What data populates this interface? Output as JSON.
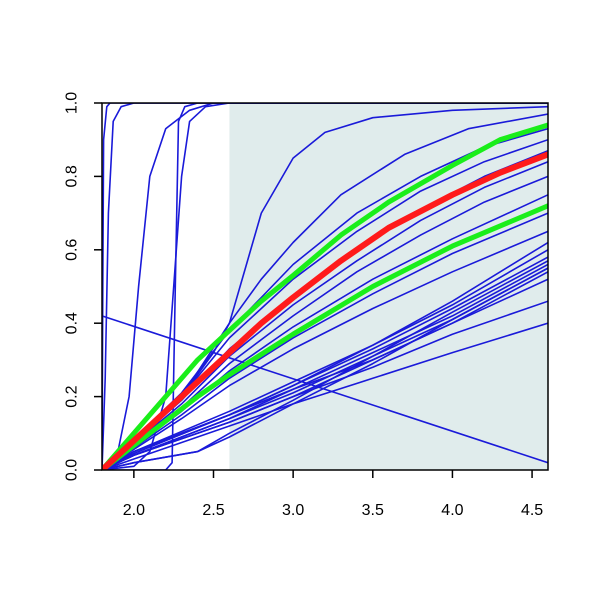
{
  "chart_data": {
    "type": "line",
    "title": "",
    "xlabel": "",
    "ylabel": "",
    "xlim": [
      1.8,
      4.6
    ],
    "ylim": [
      0.0,
      1.0
    ],
    "x_ticks": [
      "2.0",
      "2.5",
      "3.0",
      "3.5",
      "4.0",
      "4.5"
    ],
    "y_ticks": [
      "0.0",
      "0.2",
      "0.4",
      "0.6",
      "0.8",
      "1.0"
    ],
    "grid": false,
    "legend": "none",
    "shaded_region": {
      "x": [
        2.6,
        4.6
      ],
      "color": "#e0ecec"
    },
    "colors": {
      "ensemble": "#1a1ad9",
      "median": "#ff1a1a",
      "bounds": "#1aee1a"
    },
    "series": [
      {
        "role": "ensemble",
        "points": [
          [
            1.8,
            0
          ],
          [
            1.805,
            0.5
          ],
          [
            1.81,
            0.9
          ],
          [
            1.83,
            0.99
          ],
          [
            1.85,
            1.0
          ],
          [
            4.6,
            1.0
          ]
        ]
      },
      {
        "role": "ensemble",
        "points": [
          [
            1.8,
            0
          ],
          [
            1.82,
            0.25
          ],
          [
            1.84,
            0.7
          ],
          [
            1.87,
            0.95
          ],
          [
            1.92,
            0.99
          ],
          [
            2.0,
            1.0
          ],
          [
            4.6,
            1.0
          ]
        ]
      },
      {
        "role": "ensemble",
        "points": [
          [
            1.8,
            0
          ],
          [
            1.9,
            0.05
          ],
          [
            1.97,
            0.2
          ],
          [
            2.03,
            0.5
          ],
          [
            2.1,
            0.8
          ],
          [
            2.2,
            0.93
          ],
          [
            2.35,
            0.98
          ],
          [
            2.5,
            1.0
          ],
          [
            4.6,
            1.0
          ]
        ]
      },
      {
        "role": "ensemble",
        "points": [
          [
            1.8,
            0
          ],
          [
            2.0,
            0.01
          ],
          [
            2.1,
            0.05
          ],
          [
            2.2,
            0.2
          ],
          [
            2.25,
            0.5
          ],
          [
            2.3,
            0.8
          ],
          [
            2.35,
            0.95
          ],
          [
            2.45,
            0.99
          ],
          [
            2.6,
            1.0
          ],
          [
            4.6,
            1.0
          ]
        ]
      },
      {
        "role": "ensemble",
        "points": [
          [
            1.8,
            0
          ],
          [
            2.2,
            0.0
          ],
          [
            2.24,
            0.02
          ],
          [
            2.26,
            0.5
          ],
          [
            2.28,
            0.95
          ],
          [
            2.32,
            0.99
          ],
          [
            2.4,
            1.0
          ],
          [
            4.6,
            1.0
          ]
        ]
      },
      {
        "role": "ensemble",
        "points": [
          [
            1.8,
            0
          ],
          [
            2.3,
            0.2
          ],
          [
            2.5,
            0.32
          ],
          [
            2.6,
            0.4
          ],
          [
            2.7,
            0.55
          ],
          [
            2.8,
            0.7
          ],
          [
            3.0,
            0.85
          ],
          [
            3.2,
            0.92
          ],
          [
            3.5,
            0.96
          ],
          [
            4.0,
            0.98
          ],
          [
            4.6,
            0.99
          ]
        ]
      },
      {
        "role": "ensemble",
        "points": [
          [
            1.8,
            0
          ],
          [
            2.3,
            0.2
          ],
          [
            2.6,
            0.4
          ],
          [
            2.8,
            0.52
          ],
          [
            3.0,
            0.62
          ],
          [
            3.3,
            0.75
          ],
          [
            3.7,
            0.86
          ],
          [
            4.1,
            0.93
          ],
          [
            4.6,
            0.97
          ]
        ]
      },
      {
        "role": "ensemble",
        "points": [
          [
            1.8,
            0
          ],
          [
            2.3,
            0.21
          ],
          [
            2.6,
            0.38
          ],
          [
            2.8,
            0.47
          ],
          [
            3.0,
            0.56
          ],
          [
            3.4,
            0.7
          ],
          [
            3.8,
            0.8
          ],
          [
            4.2,
            0.88
          ],
          [
            4.6,
            0.93
          ]
        ]
      },
      {
        "role": "ensemble",
        "points": [
          [
            1.8,
            0
          ],
          [
            2.3,
            0.2
          ],
          [
            2.6,
            0.36
          ],
          [
            3.0,
            0.52
          ],
          [
            3.4,
            0.65
          ],
          [
            3.8,
            0.76
          ],
          [
            4.2,
            0.84
          ],
          [
            4.6,
            0.9
          ]
        ]
      },
      {
        "role": "ensemble",
        "points": [
          [
            1.8,
            0
          ],
          [
            2.3,
            0.19
          ],
          [
            2.6,
            0.33
          ],
          [
            3.0,
            0.47
          ],
          [
            3.4,
            0.6
          ],
          [
            3.8,
            0.71
          ],
          [
            4.2,
            0.8
          ],
          [
            4.6,
            0.87
          ]
        ]
      },
      {
        "role": "ensemble",
        "points": [
          [
            1.8,
            0
          ],
          [
            2.3,
            0.18
          ],
          [
            2.6,
            0.31
          ],
          [
            3.0,
            0.45
          ],
          [
            3.4,
            0.57
          ],
          [
            3.8,
            0.68
          ],
          [
            4.2,
            0.77
          ],
          [
            4.6,
            0.84
          ]
        ]
      },
      {
        "role": "ensemble",
        "points": [
          [
            1.8,
            0
          ],
          [
            2.3,
            0.17
          ],
          [
            2.6,
            0.29
          ],
          [
            3.0,
            0.42
          ],
          [
            3.4,
            0.54
          ],
          [
            3.8,
            0.64
          ],
          [
            4.2,
            0.73
          ],
          [
            4.6,
            0.8
          ]
        ]
      },
      {
        "role": "ensemble",
        "points": [
          [
            1.8,
            0
          ],
          [
            2.3,
            0.16
          ],
          [
            2.6,
            0.27
          ],
          [
            3.0,
            0.39
          ],
          [
            3.5,
            0.52
          ],
          [
            4.0,
            0.63
          ],
          [
            4.6,
            0.75
          ]
        ]
      },
      {
        "role": "ensemble",
        "points": [
          [
            1.8,
            0
          ],
          [
            2.3,
            0.15
          ],
          [
            2.6,
            0.25
          ],
          [
            3.0,
            0.36
          ],
          [
            3.5,
            0.48
          ],
          [
            4.0,
            0.59
          ],
          [
            4.6,
            0.7
          ]
        ]
      },
      {
        "role": "ensemble",
        "points": [
          [
            1.8,
            0
          ],
          [
            2.3,
            0.14
          ],
          [
            2.6,
            0.23
          ],
          [
            3.0,
            0.33
          ],
          [
            3.5,
            0.44
          ],
          [
            4.0,
            0.54
          ],
          [
            4.6,
            0.65
          ]
        ]
      },
      {
        "role": "ensemble",
        "points": [
          [
            1.8,
            0
          ],
          [
            2.0,
            0.05
          ],
          [
            2.6,
            0.15
          ],
          [
            3.0,
            0.22
          ],
          [
            3.5,
            0.3
          ],
          [
            4.0,
            0.4
          ],
          [
            4.6,
            0.52
          ]
        ]
      },
      {
        "role": "ensemble",
        "points": [
          [
            1.8,
            0
          ],
          [
            2.0,
            0.05
          ],
          [
            2.6,
            0.16
          ],
          [
            3.0,
            0.24
          ],
          [
            3.5,
            0.34
          ],
          [
            4.0,
            0.45
          ],
          [
            4.6,
            0.6
          ]
        ]
      },
      {
        "role": "ensemble",
        "points": [
          [
            1.8,
            0
          ],
          [
            2.0,
            0.05
          ],
          [
            2.6,
            0.15
          ],
          [
            3.0,
            0.23
          ],
          [
            3.5,
            0.33
          ],
          [
            4.0,
            0.44
          ],
          [
            4.6,
            0.58
          ]
        ]
      },
      {
        "role": "ensemble",
        "points": [
          [
            1.8,
            0
          ],
          [
            2.0,
            0.04
          ],
          [
            2.6,
            0.14
          ],
          [
            3.0,
            0.22
          ],
          [
            3.5,
            0.32
          ],
          [
            4.0,
            0.42
          ],
          [
            4.6,
            0.56
          ]
        ]
      },
      {
        "role": "ensemble",
        "points": [
          [
            1.8,
            0
          ],
          [
            2.0,
            0.04
          ],
          [
            2.6,
            0.14
          ],
          [
            3.0,
            0.21
          ],
          [
            3.5,
            0.31
          ],
          [
            4.0,
            0.41
          ],
          [
            4.6,
            0.55
          ]
        ]
      },
      {
        "role": "ensemble",
        "points": [
          [
            1.8,
            0
          ],
          [
            2.0,
            0.045
          ],
          [
            2.6,
            0.15
          ],
          [
            3.0,
            0.23
          ],
          [
            3.5,
            0.34
          ],
          [
            4.0,
            0.46
          ],
          [
            4.6,
            0.62
          ]
        ]
      },
      {
        "role": "ensemble",
        "points": [
          [
            1.8,
            0
          ],
          [
            2.0,
            0.04
          ],
          [
            2.6,
            0.13
          ],
          [
            3.0,
            0.2
          ],
          [
            3.5,
            0.3
          ],
          [
            4.0,
            0.4
          ],
          [
            4.6,
            0.54
          ]
        ]
      },
      {
        "role": "ensemble",
        "points": [
          [
            1.8,
            0
          ],
          [
            2.0,
            0.04
          ],
          [
            2.6,
            0.13
          ],
          [
            3.0,
            0.2
          ],
          [
            3.5,
            0.28
          ],
          [
            4.0,
            0.37
          ],
          [
            4.6,
            0.46
          ]
        ]
      },
      {
        "role": "ensemble",
        "points": [
          [
            1.8,
            0
          ],
          [
            2.0,
            0.03
          ],
          [
            2.6,
            0.12
          ],
          [
            3.0,
            0.18
          ],
          [
            3.5,
            0.25
          ],
          [
            4.0,
            0.32
          ],
          [
            4.6,
            0.4
          ]
        ]
      },
      {
        "role": "ensemble",
        "points": [
          [
            1.8,
            0
          ],
          [
            2.0,
            0.02
          ],
          [
            2.4,
            0.05
          ],
          [
            2.6,
            0.1
          ],
          [
            3.0,
            0.19
          ],
          [
            3.5,
            0.31
          ],
          [
            4.0,
            0.43
          ],
          [
            4.6,
            0.57
          ]
        ]
      },
      {
        "role": "ensemble",
        "points": [
          [
            1.8,
            0
          ],
          [
            2.0,
            0.02
          ],
          [
            2.4,
            0.05
          ],
          [
            2.6,
            0.09
          ],
          [
            3.0,
            0.18
          ],
          [
            3.5,
            0.29
          ],
          [
            4.0,
            0.41
          ],
          [
            4.6,
            0.55
          ]
        ]
      },
      {
        "role": "ensemble",
        "points": [
          [
            1.8,
            0.42
          ],
          [
            4.6,
            0.02
          ]
        ]
      },
      {
        "role": "bounds",
        "points": [
          [
            1.8,
            0
          ],
          [
            2.1,
            0.15
          ],
          [
            2.4,
            0.3
          ],
          [
            2.6,
            0.38
          ],
          [
            2.8,
            0.46
          ],
          [
            3.0,
            0.53
          ],
          [
            3.3,
            0.64
          ],
          [
            3.6,
            0.73
          ],
          [
            4.0,
            0.83
          ],
          [
            4.3,
            0.9
          ],
          [
            4.6,
            0.94
          ]
        ]
      },
      {
        "role": "bounds",
        "points": [
          [
            1.8,
            0
          ],
          [
            2.1,
            0.1
          ],
          [
            2.4,
            0.2
          ],
          [
            2.6,
            0.26
          ],
          [
            3.0,
            0.37
          ],
          [
            3.5,
            0.5
          ],
          [
            4.0,
            0.61
          ],
          [
            4.6,
            0.72
          ]
        ]
      },
      {
        "role": "median",
        "points": [
          [
            1.8,
            0
          ],
          [
            2.1,
            0.12
          ],
          [
            2.4,
            0.24
          ],
          [
            2.6,
            0.32
          ],
          [
            2.8,
            0.4
          ],
          [
            3.0,
            0.47
          ],
          [
            3.3,
            0.57
          ],
          [
            3.6,
            0.66
          ],
          [
            4.0,
            0.75
          ],
          [
            4.3,
            0.81
          ],
          [
            4.6,
            0.86
          ]
        ]
      }
    ]
  }
}
